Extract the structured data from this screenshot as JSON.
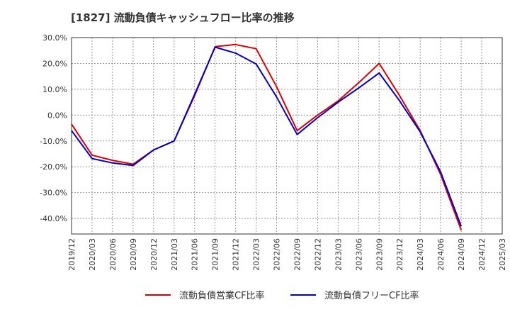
{
  "chart_data": {
    "type": "line",
    "title": "[1827]  流動負債キャッシュフロー比率の推移",
    "categories": [
      "2019/12",
      "2020/03",
      "2020/06",
      "2020/09",
      "2020/12",
      "2021/03",
      "2021/06",
      "2021/09",
      "2021/12",
      "2022/03",
      "2022/06",
      "2022/09",
      "2022/12",
      "2023/03",
      "2023/06",
      "2023/09",
      "2023/12",
      "2024/03",
      "2024/06",
      "2024/09",
      "2024/12",
      "2025/03"
    ],
    "yticks": [
      "30.0%",
      "20.0%",
      "10.0%",
      "0.0%",
      "-10.0%",
      "-20.0%",
      "-30.0%",
      "-40.0%"
    ],
    "ylim": [
      -46,
      30
    ],
    "grid": true,
    "legend_position": "bottom",
    "series": [
      {
        "name": "流動負債営業CF比率",
        "color": "#dd0000",
        "values": [
          -3.5,
          -15.5,
          -17.5,
          -19.0,
          -13.5,
          -10.0,
          7.5,
          26.5,
          27.3,
          25.7,
          11.0,
          -6.0,
          0.0,
          5.5,
          12.5,
          20.0,
          7.5,
          -6.0,
          -23.0,
          -44.5,
          null,
          null
        ]
      },
      {
        "name": "流動負債フリーCF比率",
        "color": "#0000cc",
        "values": [
          -6.0,
          -16.8,
          -18.5,
          -19.5,
          -13.5,
          -10.0,
          8.0,
          26.3,
          24.0,
          19.8,
          7.0,
          -7.5,
          -1.0,
          5.0,
          10.5,
          16.3,
          5.5,
          -6.5,
          -22.0,
          -43.0,
          null,
          null
        ]
      }
    ]
  }
}
